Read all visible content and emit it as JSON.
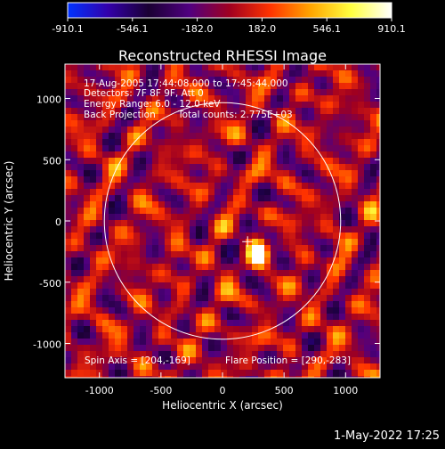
{
  "title": "Reconstructed RHESSI Image",
  "footer": {
    "timestamp": "1-May-2022 17:25"
  },
  "colorbar": {
    "min": -910.1,
    "max": 910.1,
    "ticks": [
      -910.1,
      -546.1,
      -182.0,
      182.0,
      546.1,
      910.1
    ],
    "tick_labels": [
      "-910.1",
      "-546.1",
      "-182.0",
      "182.0",
      "546.1",
      "910.1"
    ],
    "colors": [
      "#0033ff",
      "#3300aa",
      "#1a0033",
      "#500080",
      "#a00020",
      "#ff3300",
      "#ffa500",
      "#ffff40",
      "#ffffff"
    ]
  },
  "overlay_text": {
    "time_range": "17-Aug-2005 17:44:08.000 to 17:45:44.000",
    "detectors": "Detectors: 7F 8F 9F, Att 0",
    "energy_range": "Energy Range: 6.0 - 12.0 keV",
    "back_projection": "Back Projection",
    "total_counts": "Total counts: 2.775E+03",
    "spin_axis": "Spin Axis = [204,-169]",
    "flare_position": "Flare Position = [290,-283]"
  },
  "chart_data": {
    "type": "heatmap",
    "title": "Reconstructed RHESSI Image",
    "xlabel": "Heliocentric X (arcsec)",
    "ylabel": "Heliocentric Y (arcsec)",
    "xlim": [
      -1280,
      1280
    ],
    "ylim": [
      -1280,
      1280
    ],
    "xticks": [
      -1000,
      -500,
      0,
      500,
      1000
    ],
    "yticks": [
      -1000,
      -500,
      0,
      500,
      1000
    ],
    "value_range": [
      -910.1,
      910.1
    ],
    "solar_limb": {
      "center": [
        0,
        0
      ],
      "radius": 960
    },
    "flare_position": [
      290,
      -283
    ],
    "spin_axis": [
      204,
      -169
    ],
    "bright_source": {
      "center": [
        290,
        -270
      ],
      "peak": 910.1
    }
  }
}
